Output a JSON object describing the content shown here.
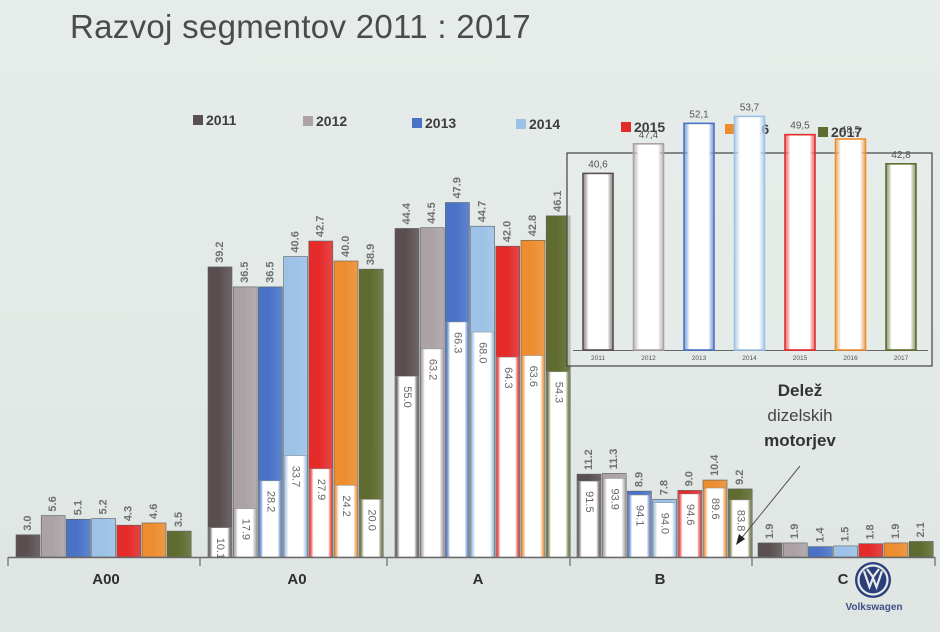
{
  "title": "Razvoj segmentov 2011 : 2017",
  "colors": {
    "2011": "#5a4f50",
    "2012": "#aca2a6",
    "2013": "#4a73c8",
    "2014": "#9cc2e8",
    "2015": "#e52a2a",
    "2016": "#ee8d2e",
    "2017": "#5f6b2f"
  },
  "chart_data": [
    {
      "type": "bar",
      "title": "Razvoj segmentov 2011 : 2017",
      "categories": [
        "A00",
        "A0",
        "A",
        "B",
        "C"
      ],
      "legend": [
        "2011",
        "2012",
        "2013",
        "2014",
        "2015",
        "2016",
        "2017"
      ],
      "legend_position": "top",
      "series": [
        {
          "name": "2011",
          "values": [
            3.0,
            39.2,
            44.4,
            11.2,
            1.9
          ]
        },
        {
          "name": "2012",
          "values": [
            5.6,
            36.5,
            44.5,
            11.3,
            1.9
          ]
        },
        {
          "name": "2013",
          "values": [
            5.1,
            36.5,
            47.9,
            8.9,
            1.4
          ]
        },
        {
          "name": "2014",
          "values": [
            5.2,
            40.6,
            44.7,
            7.8,
            1.5
          ]
        },
        {
          "name": "2015",
          "values": [
            4.3,
            42.7,
            42.0,
            9.0,
            1.8
          ]
        },
        {
          "name": "2016",
          "values": [
            4.6,
            40.0,
            42.8,
            10.4,
            1.9
          ]
        },
        {
          "name": "2017",
          "values": [
            3.5,
            38.9,
            46.1,
            9.2,
            2.1
          ]
        }
      ],
      "inner_values": {
        "A0": [
          "10.1",
          "17.9",
          "28.2",
          "33.7",
          "27.9",
          "24.2",
          "20.0"
        ],
        "A": [
          "55.0",
          "63.2",
          "66.3",
          "68.0",
          "64.3",
          "63.6",
          "54.3"
        ],
        "B": [
          "91.5",
          "93.9",
          "94.1",
          "94.0",
          "94.6",
          "89.6",
          "83.8"
        ]
      },
      "value_labels": {
        "A00": [
          "3.0",
          "5.6",
          "5.1",
          "5.2",
          "4.3",
          "4.6",
          "3.5"
        ],
        "A0": [
          "39.2",
          "36.5",
          "36.5",
          "40.6",
          "42.7",
          "40.0",
          "38.9"
        ],
        "A": [
          "44.4",
          "44.5",
          "47.9",
          "44.7",
          "42.0",
          "42.8",
          "46.1"
        ],
        "B": [
          "11.2",
          "11.3",
          "8.9",
          "7.8",
          "9.0",
          "10.4",
          "9.2"
        ],
        "C": [
          "1.9",
          "1.9",
          "1.4",
          "1.5",
          "1.8",
          "1.9",
          "2.1"
        ]
      },
      "grid": false
    },
    {
      "type": "bar",
      "categories": [
        "2011",
        "2012",
        "2013",
        "2014",
        "2015",
        "2016",
        "2017"
      ],
      "values": [
        40.6,
        47.4,
        52.1,
        53.7,
        49.5,
        48.5,
        42.8
      ],
      "value_labels": [
        "40,6",
        "47,4",
        "52,1",
        "53,7",
        "49,5",
        "48,5",
        "42,8"
      ],
      "legend_position": "none",
      "grid": false
    }
  ],
  "annotation": {
    "line1": "Delež",
    "line2": "dizelskih",
    "line3": "motorjev"
  },
  "brand": {
    "logo": "vw-logo-icon",
    "name": "Volkswagen"
  }
}
